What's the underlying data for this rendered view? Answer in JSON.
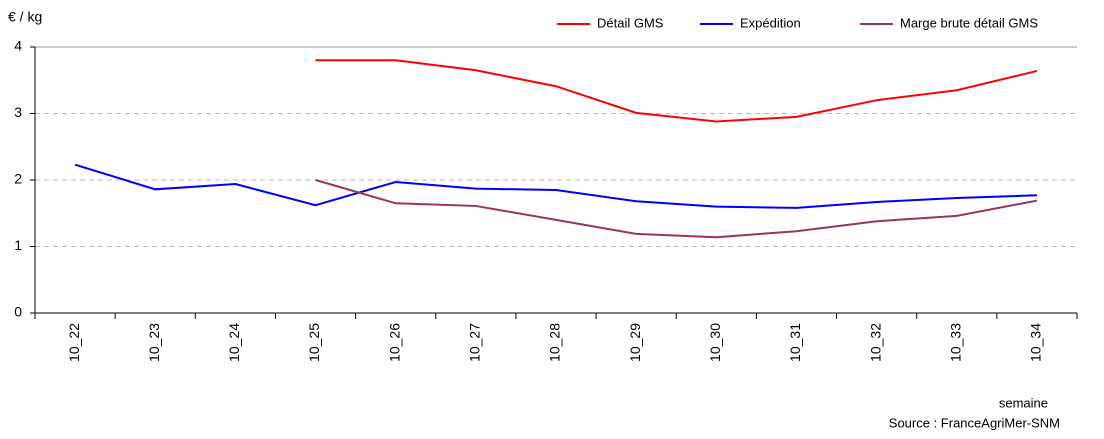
{
  "chart_data": {
    "type": "line",
    "y_label": "€ / kg",
    "x_label": "semaine",
    "source": "Source : FranceAgriMer-SNM",
    "categories": [
      "10_22",
      "10_23",
      "10_24",
      "10_25",
      "10_26",
      "10_27",
      "10_28",
      "10_29",
      "10_30",
      "10_31",
      "10_32",
      "10_33",
      "10_34"
    ],
    "series": [
      {
        "name": "Détail GMS",
        "color": "#ff0000",
        "values": [
          null,
          null,
          null,
          3.8,
          3.8,
          3.65,
          3.41,
          3.01,
          2.88,
          2.95,
          3.2,
          3.35,
          3.64
        ]
      },
      {
        "name": "Expédition",
        "color": "#0000ff",
        "values": [
          2.23,
          1.86,
          1.94,
          1.62,
          1.97,
          1.87,
          1.85,
          1.68,
          1.6,
          1.58,
          1.67,
          1.73,
          1.77
        ]
      },
      {
        "name": "Marge brute détail GMS",
        "color": "#993366",
        "values": [
          null,
          null,
          null,
          2.0,
          1.65,
          1.61,
          1.4,
          1.19,
          1.14,
          1.23,
          1.38,
          1.46,
          1.69
        ]
      }
    ],
    "ylim": [
      0,
      4
    ],
    "yticks": [
      0,
      1,
      2,
      3,
      4
    ],
    "grid": true,
    "legend": "top-right"
  }
}
